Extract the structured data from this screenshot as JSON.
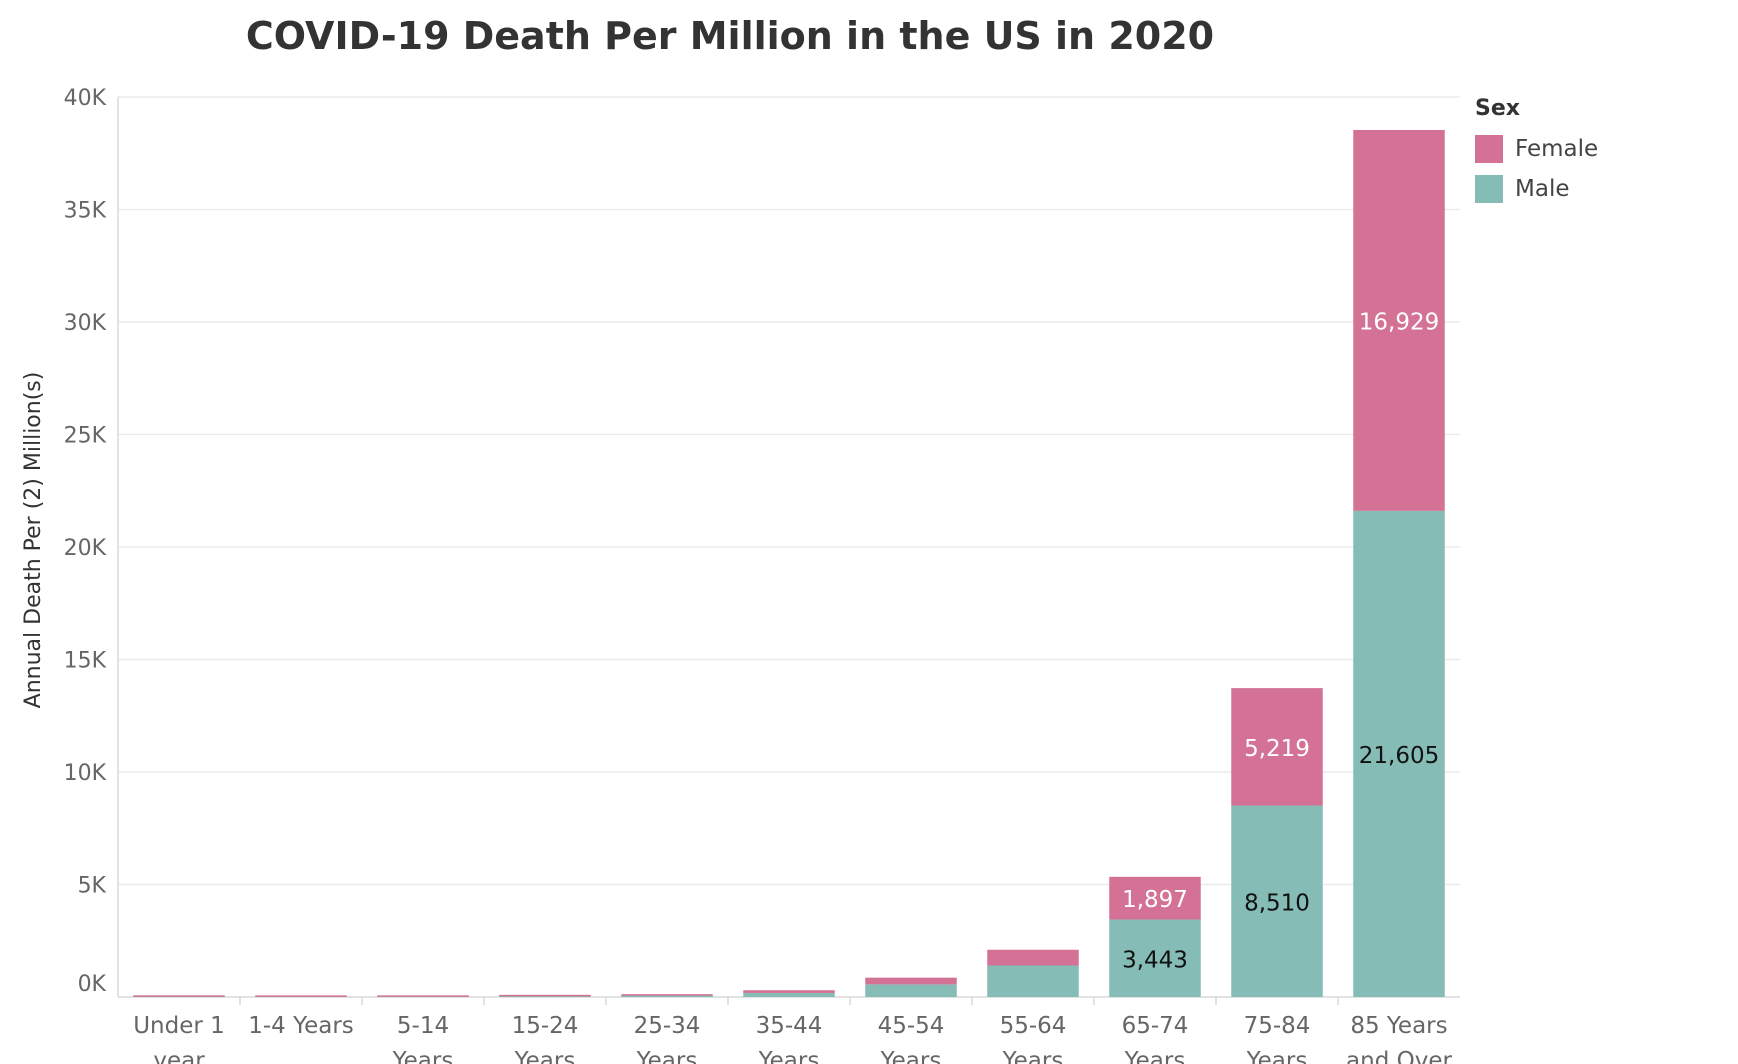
{
  "chart_data": {
    "type": "bar",
    "stacked": true,
    "title": "COVID-19 Death Per Million in the US in 2020",
    "xlabel": "",
    "ylabel": "Annual Death Per (2) Million(s)",
    "ylim": [
      0,
      40000
    ],
    "yticks": [
      {
        "value": 0,
        "label": "0K"
      },
      {
        "value": 5000,
        "label": "5K"
      },
      {
        "value": 10000,
        "label": "10K"
      },
      {
        "value": 15000,
        "label": "15K"
      },
      {
        "value": 20000,
        "label": "20K"
      },
      {
        "value": 25000,
        "label": "25K"
      },
      {
        "value": 30000,
        "label": "30K"
      },
      {
        "value": 35000,
        "label": "35K"
      },
      {
        "value": 40000,
        "label": "40K"
      }
    ],
    "categories": [
      [
        "Under 1",
        "year"
      ],
      [
        "1-4 Years"
      ],
      [
        "5-14",
        "Years"
      ],
      [
        "15-24",
        "Years"
      ],
      [
        "25-34",
        "Years"
      ],
      [
        "35-44",
        "Years"
      ],
      [
        "45-54",
        "Years"
      ],
      [
        "55-64",
        "Years"
      ],
      [
        "65-74",
        "Years"
      ],
      [
        "75-84",
        "Years"
      ],
      [
        "85 Years",
        "and Over"
      ]
    ],
    "series": [
      {
        "name": "Male",
        "color": "#86bcb6",
        "values": [
          8,
          4,
          6,
          30,
          60,
          180,
          560,
          1400,
          3443,
          8510,
          21605
        ],
        "labels": [
          null,
          null,
          null,
          null,
          null,
          null,
          null,
          null,
          "3,443",
          "8,510",
          "21,605"
        ],
        "label_color": "#111111"
      },
      {
        "name": "Female",
        "color": "#d37295",
        "values": [
          4,
          2,
          3,
          20,
          40,
          120,
          300,
          700,
          1897,
          5219,
          16929
        ],
        "labels": [
          null,
          null,
          null,
          null,
          null,
          null,
          null,
          null,
          "1,897",
          "5,219",
          "16,929"
        ],
        "label_color": "#ffffff"
      }
    ],
    "legend": {
      "title": "Sex",
      "position": "top-right",
      "items": [
        {
          "name": "Female",
          "color": "#d37295"
        },
        {
          "name": "Male",
          "color": "#86bcb6"
        }
      ]
    },
    "grid": true
  }
}
